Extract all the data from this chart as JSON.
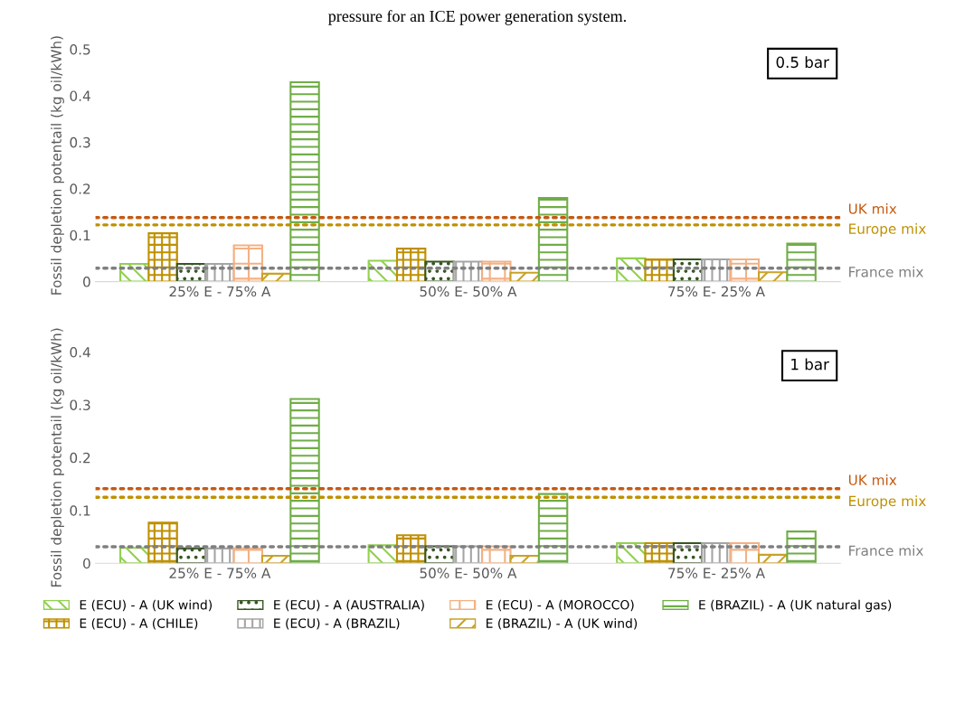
{
  "chart_data": [
    {
      "type": "bar",
      "title": "pressure for an ICE power generation system.",
      "ylabel": "Fossil depletion potentail (kg oil/kWh)",
      "annotations": [
        "0.5 bar"
      ],
      "categories": [
        "25% E - 75% A",
        "50% E- 50% A",
        "75% E- 25% A"
      ],
      "series": [
        {
          "color": "#92d050",
          "values": [
            0.038,
            0.045,
            0.05
          ]
        },
        {
          "color": "#bf9000",
          "values": [
            0.104,
            0.071,
            0.048
          ]
        },
        {
          "color": "#375623",
          "values": [
            0.038,
            0.043,
            0.048
          ]
        },
        {
          "color": "#a5a5a5",
          "values": [
            0.038,
            0.043,
            0.048
          ]
        },
        {
          "color": "#f4b183",
          "values": [
            0.078,
            0.043,
            0.048
          ]
        },
        {
          "color": "#c9a227",
          "values": [
            0.017,
            0.019,
            0.02
          ]
        },
        {
          "color": "#70ad47",
          "values": [
            0.429,
            0.18,
            0.082
          ]
        }
      ],
      "ref_lines": [
        {
          "axis": "y",
          "value": 0.138,
          "label": "UK mix",
          "color": "#c55a11",
          "line_style": "dotted"
        },
        {
          "axis": "y",
          "value": 0.122,
          "label": "Europe mix",
          "color": "#bf9000",
          "line_style": "dotted"
        },
        {
          "axis": "y",
          "value": 0.029,
          "label": "France mix",
          "color": "#7f7f7f",
          "line_style": "dotted"
        }
      ],
      "ylim": [
        0,
        0.5
      ],
      "yticks": [
        0,
        0.1,
        0.2,
        0.3,
        0.4,
        0.5
      ],
      "grid": false,
      "legend": false
    },
    {
      "type": "bar",
      "ylabel": "Fossil depletion potentail (kg oil/kWh)",
      "annotations": [
        "1 bar"
      ],
      "categories": [
        "25% E - 75% A",
        "50% E- 50% A",
        "75% E- 25% A"
      ],
      "series": [
        {
          "name": "E (ECU) - A (UK wind)",
          "color": "#92d050",
          "values": [
            0.029,
            0.034,
            0.038
          ]
        },
        {
          "name": "E (ECU) - A (CHILE)",
          "color": "#bf9000",
          "values": [
            0.077,
            0.053,
            0.038
          ]
        },
        {
          "name": "E (ECU) - A (AUSTRALIA)",
          "color": "#375623",
          "values": [
            0.028,
            0.032,
            0.038
          ]
        },
        {
          "name": "E (ECU) - A (BRAZIL)",
          "color": "#a5a5a5",
          "values": [
            0.028,
            0.032,
            0.038
          ]
        },
        {
          "name": "E (ECU) - A (MOROCCO)",
          "color": "#f4b183",
          "values": [
            0.028,
            0.032,
            0.038
          ]
        },
        {
          "name": "E (BRAZIL) - A (UK wind)",
          "color": "#c9a227",
          "values": [
            0.014,
            0.014,
            0.016
          ]
        },
        {
          "name": "E (BRAZIL) - A (UK natural gas)",
          "color": "#70ad47",
          "values": [
            0.311,
            0.131,
            0.06
          ]
        }
      ],
      "ref_lines": [
        {
          "axis": "y",
          "value": 0.141,
          "label": "UK mix",
          "color": "#c55a11",
          "line_style": "dotted"
        },
        {
          "axis": "y",
          "value": 0.125,
          "label": "Europe mix",
          "color": "#bf9000",
          "line_style": "dotted"
        },
        {
          "axis": "y",
          "value": 0.031,
          "label": "France mix",
          "color": "#7f7f7f",
          "line_style": "dotted"
        }
      ],
      "ylim": [
        0,
        0.4
      ],
      "yticks": [
        0,
        0.1,
        0.2,
        0.3,
        0.4
      ],
      "grid": false,
      "legend": "bottom"
    }
  ]
}
